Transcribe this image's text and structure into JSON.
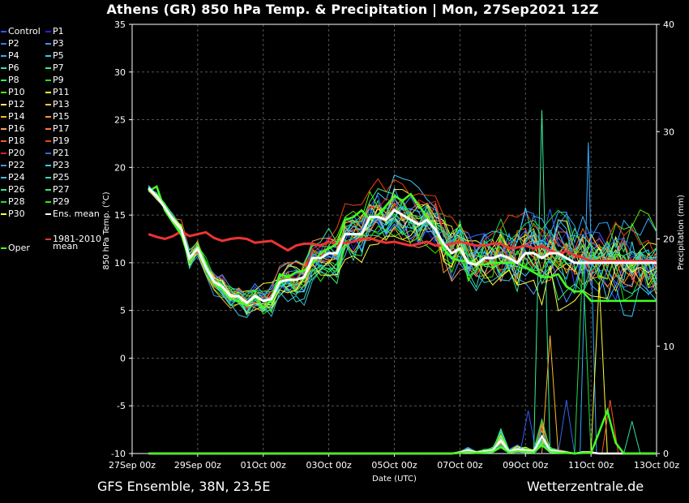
{
  "title": "Athens  (GR)  850 hPa Temp. & Precipitation | Mon, 27Sep2021 12Z",
  "footer_left": "GFS Ensemble, 38N, 23.5E",
  "footer_right": "Wetterzentrale.de",
  "legend": {
    "items": [
      {
        "label": "Control",
        "color": "#3355ff"
      },
      {
        "label": "P1",
        "color": "#2222ee"
      },
      {
        "label": "P2",
        "color": "#3377ff"
      },
      {
        "label": "P3",
        "color": "#3399ff"
      },
      {
        "label": "P4",
        "color": "#33aaff"
      },
      {
        "label": "P5",
        "color": "#33ccff"
      },
      {
        "label": "P6",
        "color": "#33ddcc"
      },
      {
        "label": "P7",
        "color": "#33ee99"
      },
      {
        "label": "P8",
        "color": "#33ee66"
      },
      {
        "label": "P9",
        "color": "#22dd22"
      },
      {
        "label": "P10",
        "color": "#55ee00"
      },
      {
        "label": "P11",
        "color": "#ffff33"
      },
      {
        "label": "P12",
        "color": "#ffee66"
      },
      {
        "label": "P13",
        "color": "#ffcc33"
      },
      {
        "label": "P14",
        "color": "#ffbb22"
      },
      {
        "label": "P15",
        "color": "#ff9922"
      },
      {
        "label": "P16",
        "color": "#ff9966"
      },
      {
        "label": "P17",
        "color": "#ff7744"
      },
      {
        "label": "P18",
        "color": "#ff5522"
      },
      {
        "label": "P19",
        "color": "#ee4411"
      },
      {
        "label": "P20",
        "color": "#dd2222"
      },
      {
        "label": "P21",
        "color": "#3366ee"
      },
      {
        "label": "P22",
        "color": "#4499ff"
      },
      {
        "label": "P23",
        "color": "#33ccff"
      },
      {
        "label": "P24",
        "color": "#44bbdd"
      },
      {
        "label": "P25",
        "color": "#33ddaa"
      },
      {
        "label": "P26",
        "color": "#33ee88"
      },
      {
        "label": "P27",
        "color": "#33ee77"
      },
      {
        "label": "P28",
        "color": "#22dd44"
      },
      {
        "label": "P29",
        "color": "#33ee00"
      },
      {
        "label": "P30",
        "color": "#ffff44"
      },
      {
        "label": "Ens. mean",
        "color": "#ffffff"
      }
    ],
    "climate_label_1": "1981-2010",
    "climate_label_2": "mean",
    "climate_color": "#ee3333",
    "oper_label": "Oper",
    "oper_color": "#44ff22"
  },
  "chart_data": {
    "type": "line",
    "title": "Athens  (GR)  850 hPa Temp. & Precipitation | Mon, 27Sep2021 12Z",
    "xlabel": "Date (UTC)",
    "ylabel": "850 hPa Temp. (°C)",
    "y2label": "Precipitation (mm)",
    "ylim": [
      -10,
      35
    ],
    "y2lim": [
      0,
      40
    ],
    "xlim": [
      0,
      384
    ],
    "x_unit": "hours after 27Sep 00z",
    "step_hours": 6,
    "start_hour": 12,
    "x_ticks": [
      {
        "hour": 0,
        "label": "27Sep 00z"
      },
      {
        "hour": 48,
        "label": "29Sep 00z"
      },
      {
        "hour": 96,
        "label": "01Oct 00z"
      },
      {
        "hour": 144,
        "label": "03Oct 00z"
      },
      {
        "hour": 192,
        "label": "05Oct 00z"
      },
      {
        "hour": 240,
        "label": "07Oct 00z"
      },
      {
        "hour": 288,
        "label": "09Oct 00z"
      },
      {
        "hour": 336,
        "label": "11Oct 00z"
      },
      {
        "hour": 384,
        "label": "13Oct 00z"
      }
    ],
    "y_ticks": [
      35,
      30,
      25,
      20,
      15,
      10,
      5,
      0,
      -5,
      -10
    ],
    "y2_ticks": [
      40,
      30,
      20,
      10,
      0
    ],
    "grid": true,
    "ens_mean": [
      17.8,
      17.0,
      15.8,
      14.5,
      13.5,
      10.5,
      11.5,
      9.5,
      8.0,
      7.5,
      6.5,
      6.5,
      5.8,
      6.5,
      6.0,
      6.2,
      8.0,
      8.2,
      8.2,
      8.5,
      10.5,
      10.5,
      11.0,
      11.0,
      13.0,
      13.0,
      13.0,
      14.8,
      14.8,
      14.5,
      15.5,
      15.0,
      14.5,
      14.0,
      14.5,
      13.5,
      12.0,
      11.0,
      11.5,
      10.0,
      9.8,
      10.5,
      10.5,
      10.8,
      10.5,
      10.0,
      11.0,
      11.0,
      10.5,
      11.0,
      11.0,
      10.5,
      10.0,
      10.0,
      10.0,
      10.0,
      10.0,
      10.0,
      10.0,
      10.0,
      10.0,
      10.0,
      10.0
    ],
    "climate_mean": [
      13.0,
      12.7,
      12.5,
      12.8,
      13.3,
      12.8,
      13.0,
      13.2,
      12.6,
      12.3,
      12.5,
      12.6,
      12.5,
      12.1,
      12.2,
      12.3,
      11.8,
      11.3,
      11.8,
      12.0,
      12.0,
      11.8,
      12.2,
      12.0,
      12.1,
      12.2,
      12.5,
      12.6,
      12.3,
      12.1,
      12.2,
      12.0,
      11.8,
      12.0,
      12.2,
      11.8,
      11.8,
      12.0,
      12.2,
      12.0,
      11.8,
      11.8,
      12.0,
      12.0,
      11.5,
      11.6,
      11.8,
      11.5,
      11.8,
      11.3,
      11.0,
      11.2,
      10.8,
      10.5,
      10.2,
      10.2,
      10.2,
      10.2,
      10.2,
      10.2,
      10.2,
      10.2,
      10.2
    ],
    "oper": [
      17.5,
      18.0,
      15.5,
      14.2,
      13.0,
      10.2,
      11.8,
      10.0,
      7.8,
      7.2,
      6.2,
      6.0,
      5.5,
      6.5,
      5.2,
      6.2,
      8.8,
      8.5,
      9.0,
      9.2,
      10.0,
      11.0,
      11.5,
      12.0,
      14.5,
      14.8,
      15.5,
      14.5,
      15.0,
      16.0,
      17.0,
      16.5,
      17.2,
      16.0,
      14.8,
      13.5,
      11.5,
      10.5,
      10.2,
      10.2,
      10.0,
      9.8,
      10.0,
      10.0,
      10.0,
      10.0,
      9.5,
      9.0,
      8.5,
      8.5,
      8.8,
      7.5,
      7.0,
      7.0,
      6.0,
      6.0,
      6.0,
      6.0,
      6.0,
      6.0,
      6.0,
      6.0,
      6.0
    ],
    "member_count": 30,
    "member_spread_note": "",
    "precip_mean": [
      0,
      0,
      0,
      0,
      0,
      0,
      0,
      0,
      0,
      0,
      0,
      0,
      0,
      0,
      0,
      0,
      0,
      0,
      0,
      0,
      0,
      0,
      0,
      0,
      0,
      0,
      0,
      0,
      0,
      0,
      0,
      0,
      0,
      0,
      0,
      0,
      0,
      0,
      0.1,
      0.3,
      0.1,
      0.2,
      0.3,
      1.2,
      0.2,
      0.4,
      0.3,
      0.2,
      1.6,
      0.3,
      0.2,
      0.1,
      0,
      0.1,
      0.1,
      0,
      0,
      0,
      0,
      0,
      0,
      0,
      0
    ],
    "precip_peaks": [
      {
        "hour": 290,
        "mm": 4
      },
      {
        "hour": 300,
        "mm": 32
      },
      {
        "hour": 306,
        "mm": 11
      },
      {
        "hour": 318,
        "mm": 5
      },
      {
        "hour": 330,
        "mm": 18
      },
      {
        "hour": 334,
        "mm": 29
      },
      {
        "hour": 342,
        "mm": 16
      },
      {
        "hour": 350,
        "mm": 5
      },
      {
        "hour": 366,
        "mm": 3
      }
    ]
  }
}
